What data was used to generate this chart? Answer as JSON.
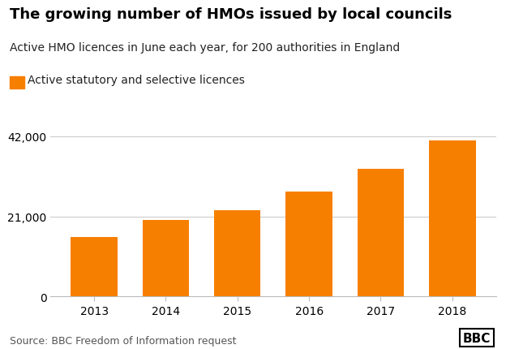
{
  "title": "The growing number of HMOs issued by local councils",
  "subtitle": "Active HMO licences in June each year, for 200 authorities in England",
  "legend_label": "Active statutory and selective licences",
  "source": "Source: BBC Freedom of Information request",
  "categories": [
    "2013",
    "2014",
    "2015",
    "2016",
    "2017",
    "2018"
  ],
  "values": [
    15500,
    20000,
    22700,
    27500,
    33500,
    41000
  ],
  "bar_color": "#f77f00",
  "background_color": "#ffffff",
  "ylim": [
    0,
    44000
  ],
  "yticks": [
    0,
    21000,
    42000
  ],
  "ytick_labels": [
    "0",
    "21,000",
    "42,000"
  ],
  "title_fontsize": 13,
  "subtitle_fontsize": 10,
  "legend_fontsize": 10,
  "tick_fontsize": 10,
  "source_fontsize": 9,
  "bar_width": 0.65
}
